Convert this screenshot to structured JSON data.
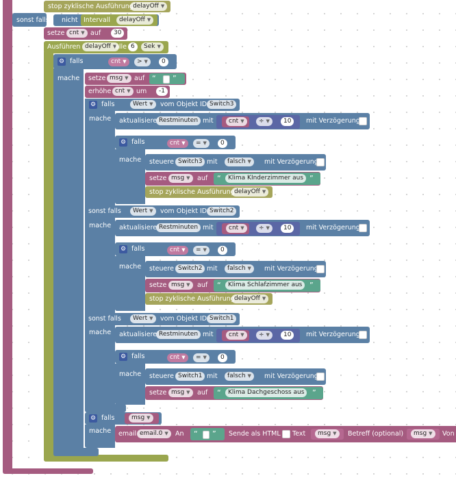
{
  "top": {
    "mache1": "mache",
    "stop_label": "stop zyklische Ausführung",
    "stop_var": "delayOff",
    "sonst_falls": "sonst falls",
    "nicht": "nicht",
    "intervall": "Intervall",
    "intervall_var": "delayOff",
    "mache2": "mache",
    "setze": "setze",
    "cnt_var": "cnt",
    "auf": "auf",
    "cnt_init": "30",
    "ausfuehren": "Ausführen",
    "ausfuehren_var": "delayOff",
    "alle": "alle",
    "interval_value": "6",
    "unit": "Sek"
  },
  "loop": {
    "falls": "falls",
    "mache": "mache",
    "cond_var": "cnt",
    "cond_op": ">",
    "cond_value": "0",
    "setze": "setze",
    "msg_var": "msg",
    "auf": "auf",
    "erhoehe": "erhöhe",
    "erhoehe_var": "cnt",
    "um": "um",
    "erhoehe_value": "-1"
  },
  "common": {
    "wert": "Wert",
    "vom_objekt": "vom Objekt ID",
    "aktualisiere": "aktualisiere",
    "restminuten": "Restminuten",
    "mit": "mit",
    "div": "÷",
    "ten": "10",
    "mit_verzoegerung": "mit Verzögerung",
    "falls": "falls",
    "mache": "mache",
    "eq": "=",
    "zero": "0",
    "steuere": "steuere",
    "falsch": "falsch",
    "setze": "setze",
    "msg": "msg",
    "auf": "auf",
    "stop_label": "stop zyklische Ausführung",
    "delayOff": "delayOff",
    "sonst_falls": "sonst falls",
    "cnt": "cnt"
  },
  "rooms": [
    {
      "switch": "Switch3",
      "message": "Klima KInderzimmer aus"
    },
    {
      "switch": "Switch2",
      "message": "Klima Schlafzimmer aus"
    },
    {
      "switch": "Switch1",
      "message": "Klima Dachgeschoss aus"
    }
  ],
  "email": {
    "falls": "falls",
    "mache": "mache",
    "cond_var": "msg",
    "email": "email",
    "instance": "email.0",
    "an": "An",
    "sende_html": "Sende als HTML",
    "text": "Text",
    "text_var": "msg",
    "betreff": "Betreff (optional)",
    "betreff_var": "msg",
    "von": "Von"
  },
  "icons": {
    "gear": "gear-icon",
    "dropdown": "chevron-down-icon",
    "checkbox": "checkbox-icon"
  },
  "colors": {
    "control": "#5b80a5",
    "variable": "#a55b80",
    "text": "#5ba58c",
    "timer": "#a5a55b"
  }
}
